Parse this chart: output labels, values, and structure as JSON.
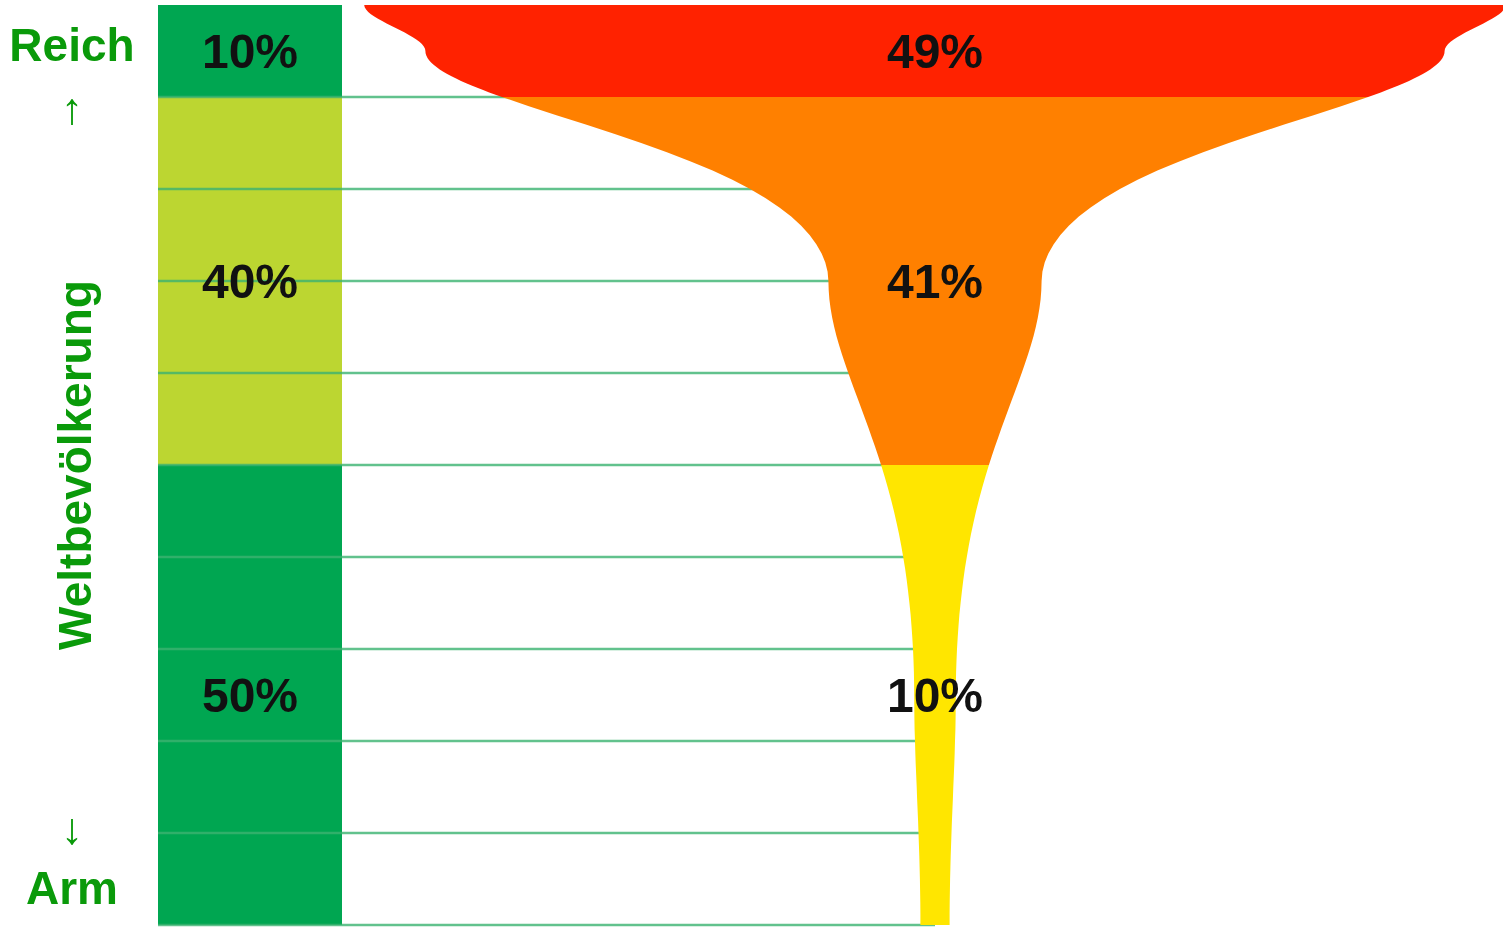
{
  "chart_data": [
    {
      "type": "other",
      "ylabel": "Weltbevölkerung",
      "annotations": [
        "Reich",
        "↑",
        "↓",
        "Arm"
      ],
      "values": [
        10,
        40,
        50
      ],
      "colors": [
        "#00a651",
        "#bcd631",
        "#00a651"
      ],
      "value_labels": [
        "10%",
        "40%",
        "50%"
      ]
    },
    {
      "type": "other",
      "values": [
        49,
        41,
        10
      ],
      "colors": [
        "#ff2200",
        "#ff8000",
        "#ffe600"
      ],
      "value_labels": [
        "49%",
        "41%",
        "10%"
      ]
    }
  ]
}
